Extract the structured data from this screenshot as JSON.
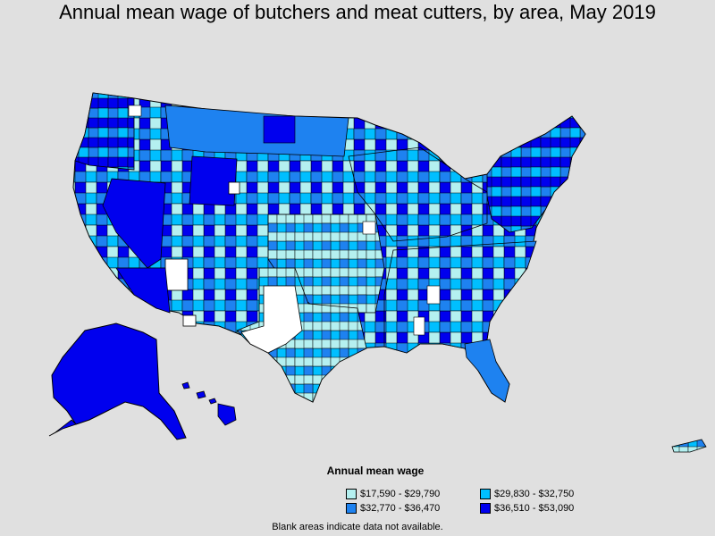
{
  "title": "Annual mean wage of butchers and meat cutters, by area, May 2019",
  "legend": {
    "title": "Annual mean wage",
    "items": [
      {
        "label": "$17,590 - $29,790",
        "color": "#b4f0f0"
      },
      {
        "label": "$29,830 - $32,750",
        "color": "#00bfff"
      },
      {
        "label": "$32,770 - $36,470",
        "color": "#1e82f0"
      },
      {
        "label": "$36,510 - $53,090",
        "color": "#0000ee"
      }
    ]
  },
  "footnote": "Blank areas indicate data not available.",
  "colors": {
    "background": "#e0e0e0",
    "border": "#000000",
    "no_data": "#ffffff"
  }
}
